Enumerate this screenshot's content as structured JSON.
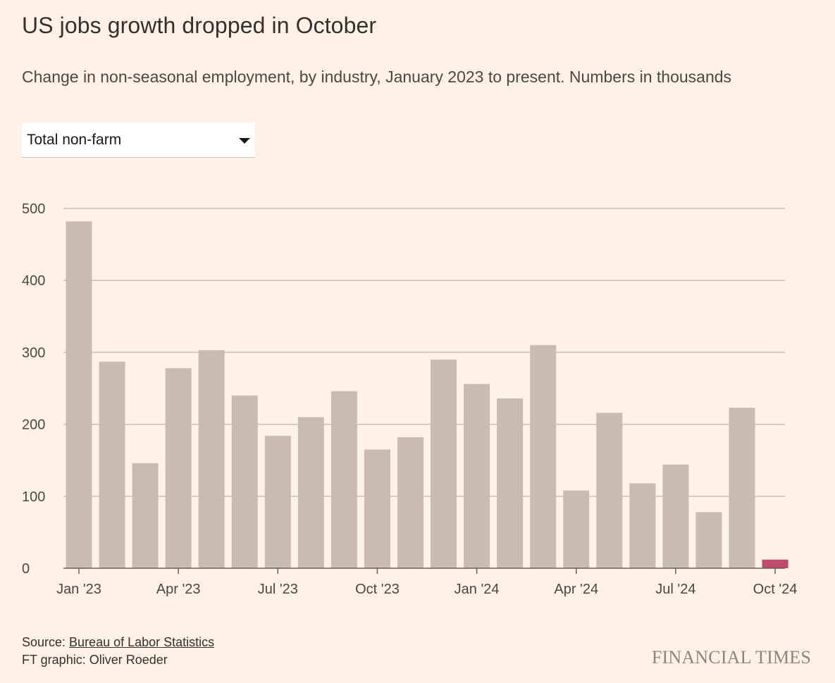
{
  "title": "US jobs growth dropped in October",
  "subtitle": "Change in non-seasonal employment, by industry, January 2023 to present. Numbers in thousands",
  "industry_select": {
    "selected": "Total non-farm",
    "icon": "caret-down-icon"
  },
  "footer": {
    "source_prefix": "Source: ",
    "source_link": "Bureau of Labor Statistics",
    "credit": "FT graphic: Oliver Roeder",
    "logo": "FINANCIAL TIMES"
  },
  "colors": {
    "background": "#fff1e5",
    "bar": "#c8bcb2",
    "highlight_bar": "#c04a6d",
    "grid": "#c9bfb6",
    "axis": "#66605c"
  },
  "chart_data": {
    "type": "bar",
    "title": "US jobs growth dropped in October",
    "subtitle": "Change in non-seasonal employment, by industry, January 2023 to present. Numbers in thousands",
    "xlabel": "",
    "ylabel": "",
    "ylim": [
      0,
      500
    ],
    "yticks": [
      0,
      100,
      200,
      300,
      400,
      500
    ],
    "grid": true,
    "legend": "none",
    "categories": [
      "Jan '23",
      "Feb '23",
      "Mar '23",
      "Apr '23",
      "May '23",
      "Jun '23",
      "Jul '23",
      "Aug '23",
      "Sep '23",
      "Oct '23",
      "Nov '23",
      "Dec '23",
      "Jan '24",
      "Feb '24",
      "Mar '24",
      "Apr '24",
      "May '24",
      "Jun '24",
      "Jul '24",
      "Aug '24",
      "Sep '24",
      "Oct '24"
    ],
    "tick_labels": [
      {
        "index": 0,
        "label": "Jan '23"
      },
      {
        "index": 3,
        "label": "Apr '23"
      },
      {
        "index": 6,
        "label": "Jul '23"
      },
      {
        "index": 9,
        "label": "Oct '23"
      },
      {
        "index": 12,
        "label": "Jan '24"
      },
      {
        "index": 15,
        "label": "Apr '24"
      },
      {
        "index": 18,
        "label": "Jul '24"
      },
      {
        "index": 21,
        "label": "Oct '24"
      }
    ],
    "values": [
      482,
      287,
      146,
      278,
      303,
      240,
      184,
      210,
      246,
      165,
      182,
      290,
      256,
      236,
      310,
      108,
      216,
      118,
      144,
      78,
      223,
      12
    ],
    "highlight_index": 21
  }
}
